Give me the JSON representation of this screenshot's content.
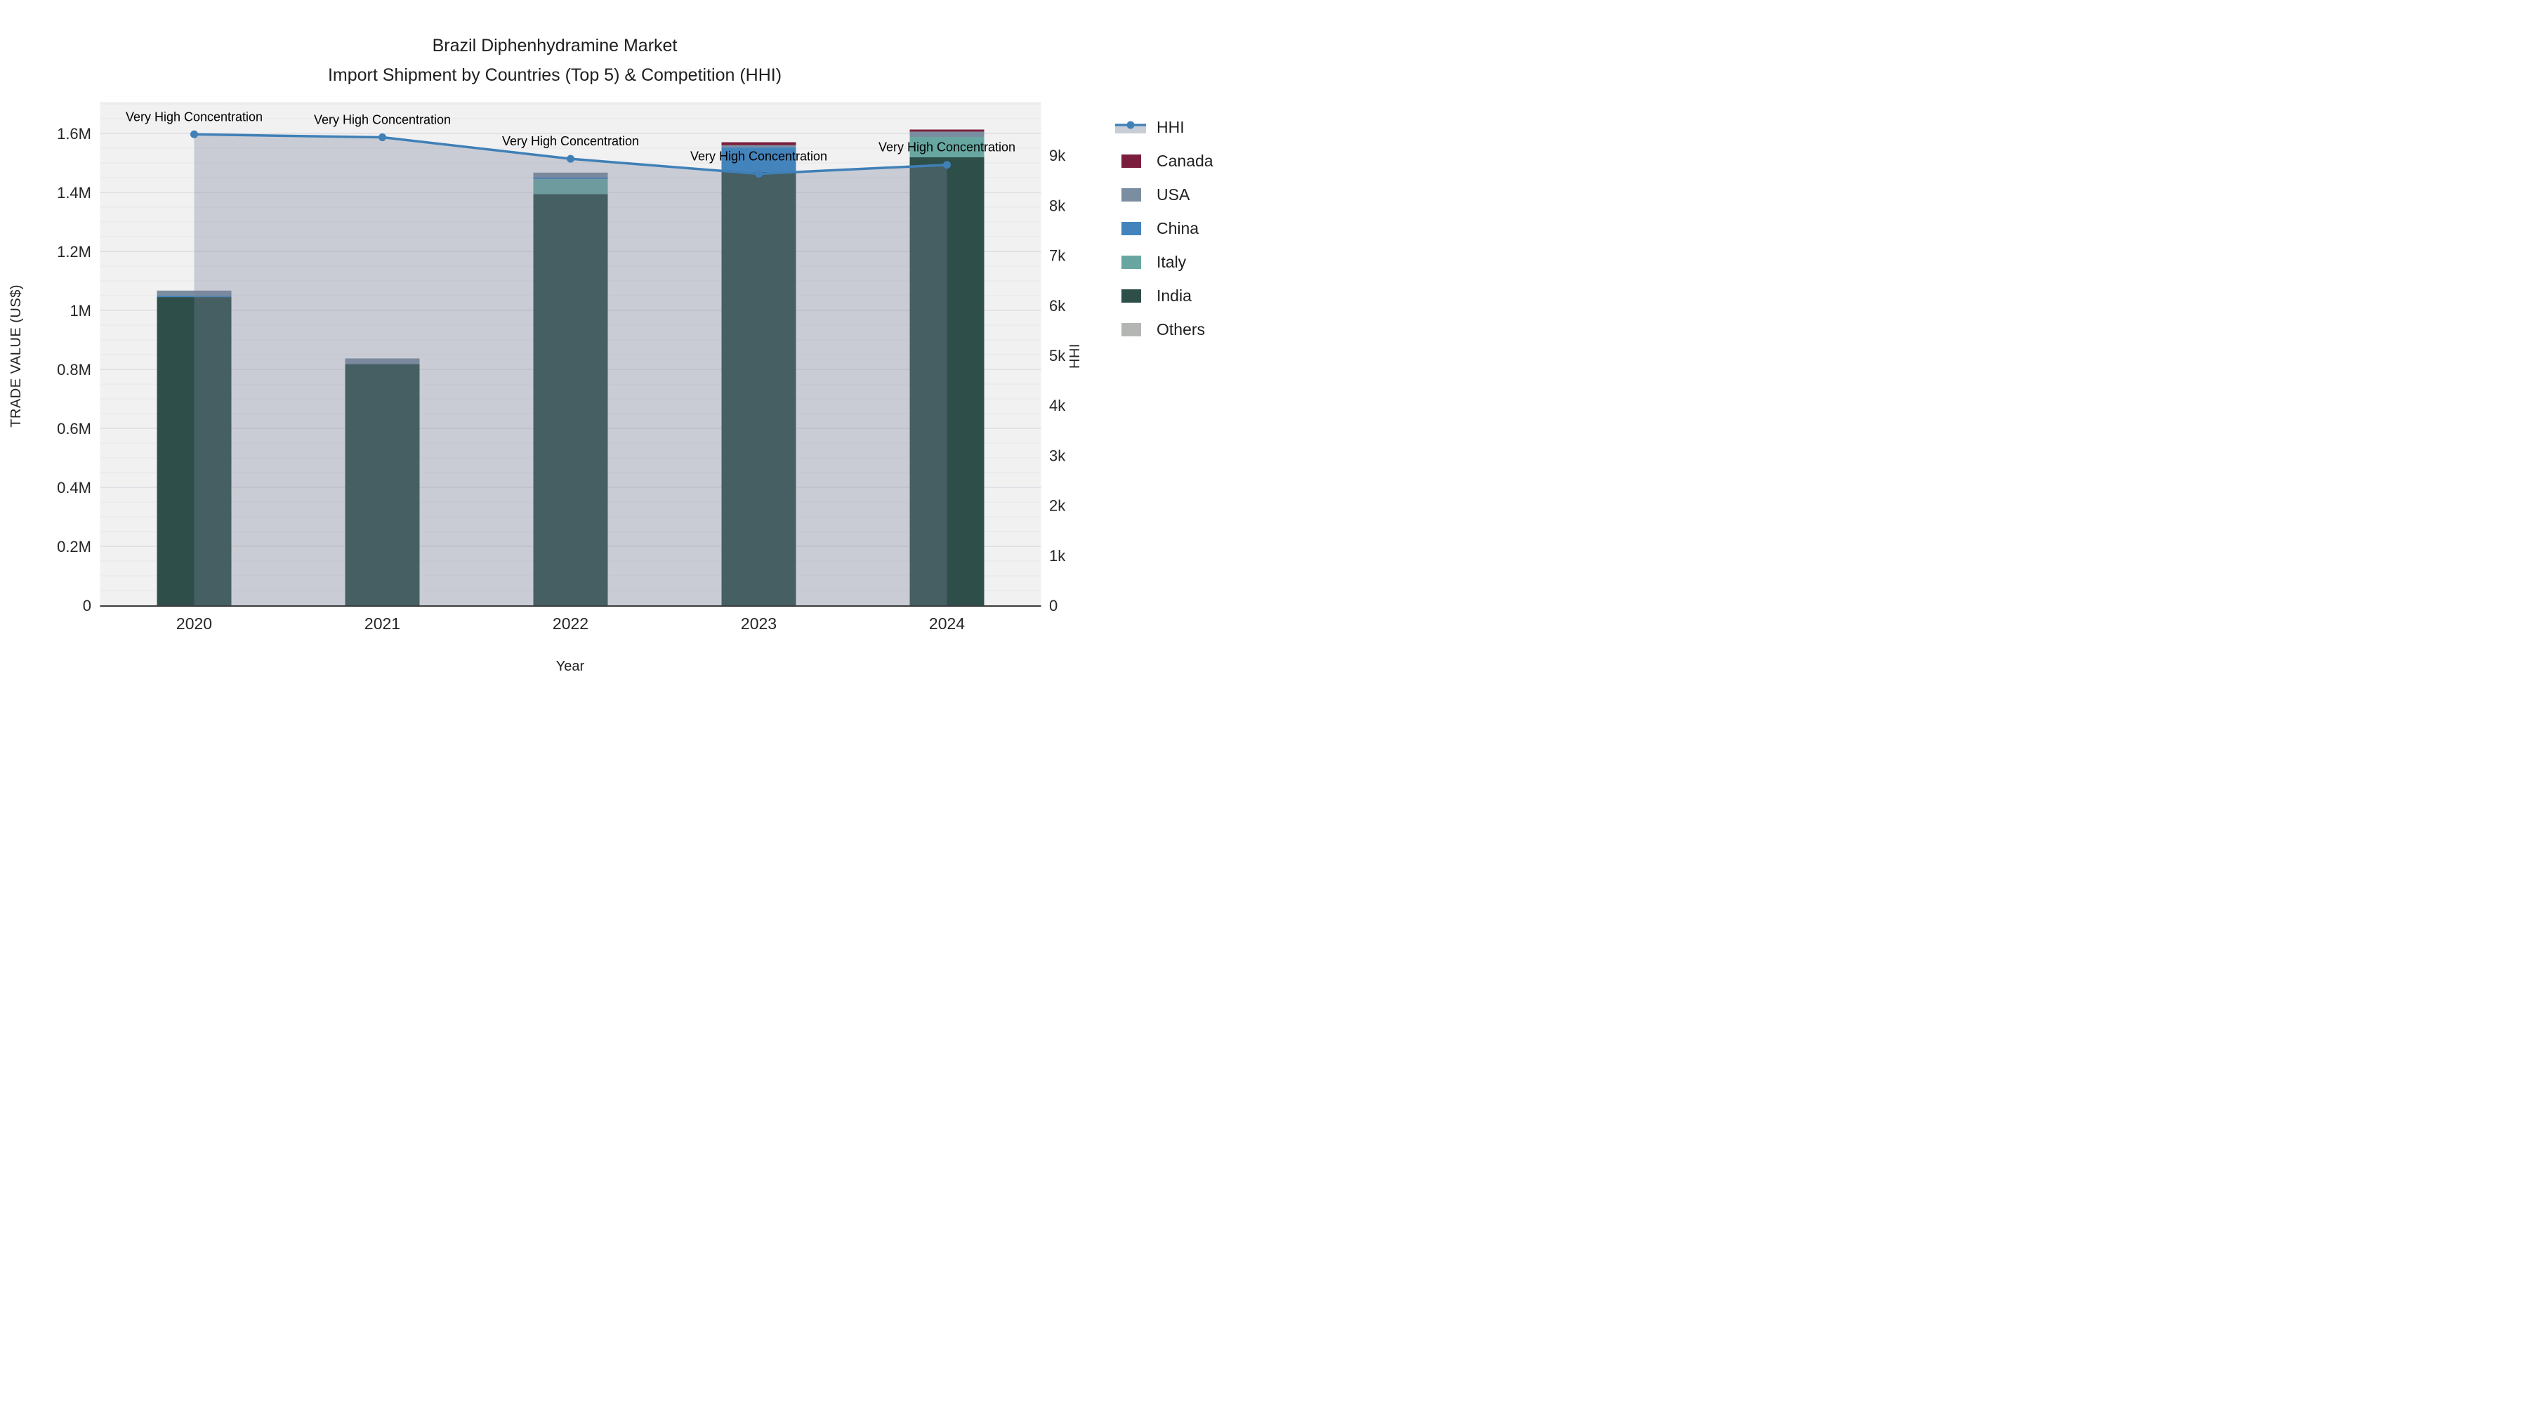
{
  "title": {
    "line1": "Brazil Diphenhydramine Market",
    "line2": "Import Shipment by Countries (Top 5) & Competition (HHI)"
  },
  "axes": {
    "x_title": "Year",
    "y_left_title": "TRADE VALUE (US$)",
    "y_right_title": "HHI"
  },
  "legend": {
    "order": [
      "HHI",
      "Canada",
      "USA",
      "China",
      "Italy",
      "India",
      "Others"
    ]
  },
  "chart_data": {
    "type": "combo-stacked-bar-line",
    "categories": [
      "2020",
      "2021",
      "2022",
      "2023",
      "2024"
    ],
    "bar_series": [
      {
        "name": "India",
        "color": "#2e4e4a",
        "values": [
          1045000,
          818000,
          1394000,
          1469000,
          1519000
        ]
      },
      {
        "name": "Italy",
        "color": "#68a7a1",
        "values": [
          0,
          0,
          51000,
          0,
          69000
        ]
      },
      {
        "name": "China",
        "color": "#4484bc",
        "values": [
          5000,
          0,
          6000,
          84000,
          0
        ]
      },
      {
        "name": "USA",
        "color": "#7b8da0",
        "values": [
          17000,
          19000,
          16000,
          7000,
          18000
        ]
      },
      {
        "name": "Canada",
        "color": "#7b1e3e",
        "values": [
          0,
          0,
          0,
          10000,
          7000
        ]
      },
      {
        "name": "Others",
        "color": "#b4b6b4",
        "values": [
          0,
          0,
          0,
          0,
          0
        ]
      }
    ],
    "bar_totals": [
      1067000,
      837000,
      1467000,
      1570000,
      1613000
    ],
    "line_series": {
      "name": "HHI",
      "axis": "right",
      "color": "#3f80b7",
      "fill_color": "rgba(121,130,152,0.33)",
      "values": [
        9420,
        9360,
        8930,
        8630,
        8810
      ]
    },
    "annotation_text": "Very High Concentration",
    "y_left": {
      "max": 1707000,
      "ticks": [
        {
          "v": 0,
          "label": "0"
        },
        {
          "v": 200000,
          "label": "0.2M"
        },
        {
          "v": 400000,
          "label": "0.4M"
        },
        {
          "v": 600000,
          "label": "0.6M"
        },
        {
          "v": 800000,
          "label": "0.8M"
        },
        {
          "v": 1000000,
          "label": "1M"
        },
        {
          "v": 1200000,
          "label": "1.2M"
        },
        {
          "v": 1400000,
          "label": "1.4M"
        },
        {
          "v": 1600000,
          "label": "1.6M"
        }
      ]
    },
    "y_right": {
      "max": 10070,
      "ticks": [
        {
          "v": 0,
          "label": "0"
        },
        {
          "v": 1000,
          "label": "1k"
        },
        {
          "v": 2000,
          "label": "2k"
        },
        {
          "v": 3000,
          "label": "3k"
        },
        {
          "v": 4000,
          "label": "4k"
        },
        {
          "v": 5000,
          "label": "5k"
        },
        {
          "v": 6000,
          "label": "6k"
        },
        {
          "v": 7000,
          "label": "7k"
        },
        {
          "v": 8000,
          "label": "8k"
        },
        {
          "v": 9000,
          "label": "9k"
        }
      ]
    },
    "grid": {
      "minor_step": 50000,
      "major_step": 200000,
      "grid_on": true,
      "legend_position": "right"
    },
    "style": {
      "plot_bg": "#f1f1f2",
      "grid_minor_color": "#e6e6ea",
      "grid_major_color": "#dddde2",
      "spine_color": "#3b3b3b",
      "tick_color": "#262626",
      "annotation_color": "#000000"
    }
  }
}
